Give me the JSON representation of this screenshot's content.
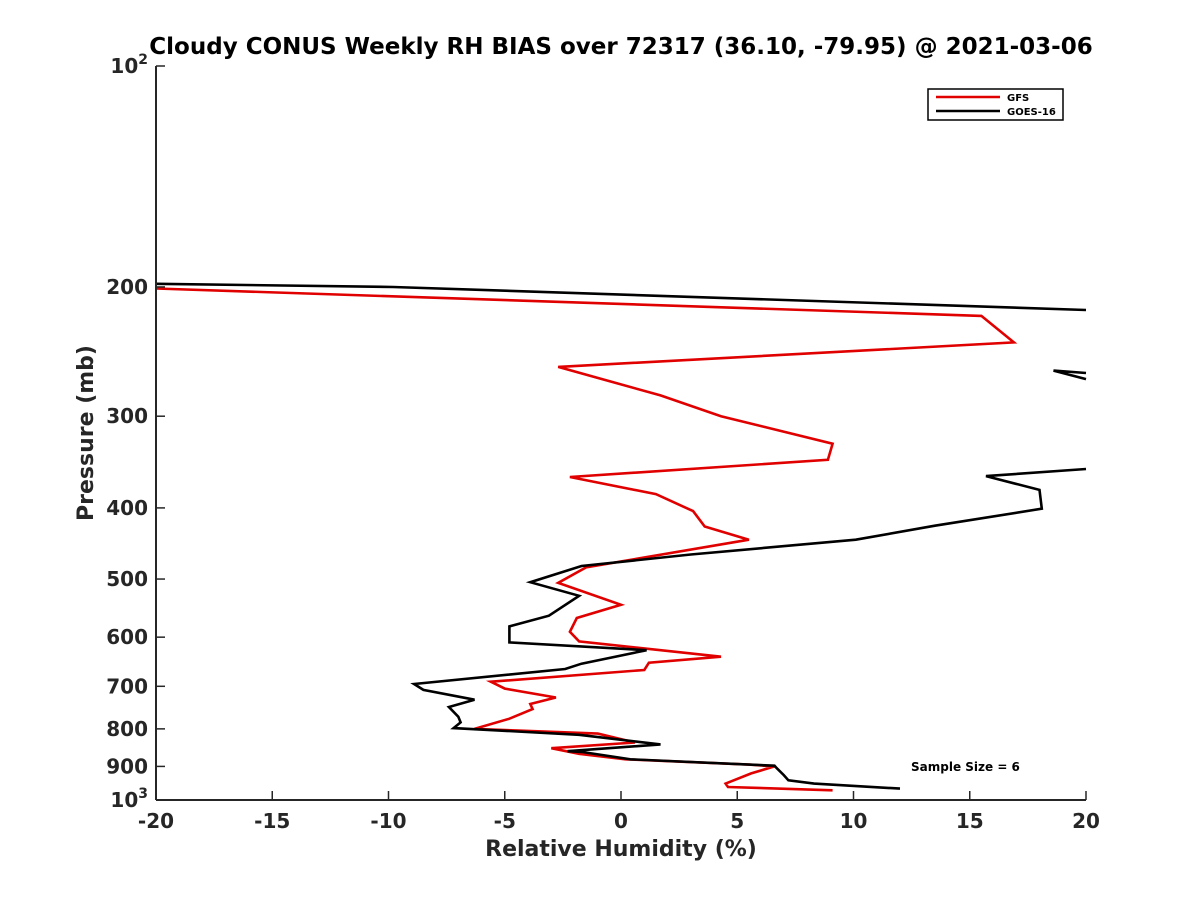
{
  "chart_data": {
    "type": "line",
    "title": "Cloudy CONUS Weekly RH BIAS over 72317 (36.10, -79.95) @ 2021-03-06",
    "xlabel": "Relative Humidity (%)",
    "ylabel": "Pressure (mb)",
    "xlim": [
      -20,
      20
    ],
    "ylim": [
      100,
      1000
    ],
    "y_scale": "log",
    "y_reversed": true,
    "grid": false,
    "legend_position": "top-right",
    "x_ticks": [
      "-20",
      "-15",
      "-10",
      "-5",
      "0",
      "5",
      "10",
      "15",
      "20"
    ],
    "y_ticks": [
      {
        "value": 100,
        "base": "10",
        "exp": "2"
      },
      {
        "value": 200,
        "label": "200"
      },
      {
        "value": 300,
        "label": "300"
      },
      {
        "value": 400,
        "label": "400"
      },
      {
        "value": 500,
        "label": "500"
      },
      {
        "value": 600,
        "label": "600"
      },
      {
        "value": 700,
        "label": "700"
      },
      {
        "value": 800,
        "label": "800"
      },
      {
        "value": 900,
        "label": "900"
      },
      {
        "value": 1000,
        "base": "10",
        "exp": "3"
      }
    ],
    "annotation": "Sample Size = 6",
    "series": [
      {
        "name": "GFS",
        "color": "#e00000",
        "points": [
          [
            9.1,
            970
          ],
          [
            4.6,
            960
          ],
          [
            4.5,
            950
          ],
          [
            5.6,
            920
          ],
          [
            6.6,
            900
          ],
          [
            5.5,
            895
          ],
          [
            0.2,
            880
          ],
          [
            -1.8,
            865
          ],
          [
            -3.0,
            850
          ],
          [
            0.6,
            835
          ],
          [
            -1.0,
            812
          ],
          [
            -6.3,
            800
          ],
          [
            -4.8,
            775
          ],
          [
            -3.8,
            752
          ],
          [
            -3.9,
            740
          ],
          [
            -2.8,
            725
          ],
          [
            -5.0,
            705
          ],
          [
            -5.6,
            690
          ],
          [
            1.0,
            665
          ],
          [
            1.2,
            650
          ],
          [
            4.3,
            638
          ],
          [
            -1.8,
            608
          ],
          [
            -2.2,
            590
          ],
          [
            -1.9,
            565
          ],
          [
            0.0,
            542
          ],
          [
            -2.7,
            506
          ],
          [
            -1.5,
            482
          ],
          [
            5.5,
            442
          ],
          [
            3.6,
            424
          ],
          [
            3.1,
            404
          ],
          [
            1.5,
            383
          ],
          [
            -2.2,
            363
          ],
          [
            8.9,
            344
          ],
          [
            9.1,
            327
          ],
          [
            4.3,
            300
          ],
          [
            1.7,
            281
          ],
          [
            -2.7,
            257
          ],
          [
            16.9,
            238
          ],
          [
            15.5,
            219
          ],
          [
            -20.0,
            201
          ]
        ]
      },
      {
        "name": "GOES-16",
        "color": "#000000",
        "points": [
          [
            12.0,
            965
          ],
          [
            8.3,
            950
          ],
          [
            7.2,
            940
          ],
          [
            7.0,
            925
          ],
          [
            6.7,
            905
          ],
          [
            6.6,
            898
          ],
          [
            0.4,
            880
          ],
          [
            -1.7,
            860
          ],
          [
            -2.3,
            858
          ],
          [
            1.7,
            840
          ],
          [
            -1.8,
            815
          ],
          [
            -7.2,
            798
          ],
          [
            -6.9,
            784
          ],
          [
            -7.0,
            770
          ],
          [
            -7.4,
            747
          ],
          [
            -6.3,
            730
          ],
          [
            -8.5,
            708
          ],
          [
            -8.9,
            695
          ],
          [
            -2.4,
            663
          ],
          [
            -1.7,
            652
          ],
          [
            1.1,
            625
          ],
          [
            -4.8,
            610
          ],
          [
            -4.8,
            580
          ],
          [
            -3.1,
            561
          ],
          [
            -1.8,
            527
          ],
          [
            -3.9,
            505
          ],
          [
            -1.7,
            480
          ],
          [
            3.0,
            463
          ],
          [
            10.1,
            442
          ],
          [
            13.5,
            423
          ],
          [
            18.1,
            401
          ],
          [
            18.0,
            378
          ],
          [
            15.7,
            362
          ],
          [
            20.0,
            354
          ]
        ],
        "extra_segments": [
          [
            [
              -20.0,
              198
            ],
            [
              -9.8,
              200
            ],
            [
              20.0,
              215
            ]
          ],
          [
            [
              20.0,
              262
            ],
            [
              18.6,
              260
            ],
            [
              20.0,
              267
            ]
          ]
        ]
      }
    ]
  }
}
